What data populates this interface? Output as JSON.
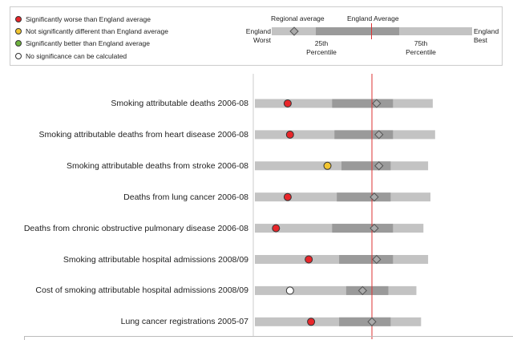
{
  "legend": {
    "items": [
      {
        "label": "Significantly worse than England average",
        "color": "#e8262a"
      },
      {
        "label": "Not significantly different than England average",
        "color": "#f2c531"
      },
      {
        "label": "Significantly better than England average",
        "color": "#6fb33f"
      },
      {
        "label": "No significance can be calculated",
        "color": "#ffffff"
      }
    ],
    "key": {
      "regional": "Regional average",
      "england_avg": "England Average",
      "worst": "England Worst",
      "best": "England Best",
      "p25": "25th Percentile",
      "p75": "75th Percentile"
    }
  },
  "chart_data": {
    "type": "spine",
    "scale_note": "",
    "series_fields": [
      "worst",
      "p25",
      "p75",
      "best",
      "local",
      "regional"
    ],
    "england_average": 50,
    "rows": [
      {
        "label": "Smoking attributable deaths 2006-08",
        "worst": 0,
        "p25": 33,
        "p75": 59,
        "best": 76,
        "local": 14,
        "regional": 52,
        "significance": "worse"
      },
      {
        "label": "Smoking attributable deaths from heart disease 2006-08",
        "worst": 0,
        "p25": 34,
        "p75": 59,
        "best": 77,
        "local": 15,
        "regional": 53,
        "significance": "worse"
      },
      {
        "label": "Smoking attributable deaths from stroke 2006-08",
        "worst": 0,
        "p25": 37,
        "p75": 58,
        "best": 74,
        "local": 31,
        "regional": 53,
        "significance": "not-different"
      },
      {
        "label": "Deaths from lung cancer 2006-08",
        "worst": 0,
        "p25": 35,
        "p75": 58,
        "best": 75,
        "local": 14,
        "regional": 51,
        "significance": "worse"
      },
      {
        "label": "Deaths from chronic obstructive pulmonary disease 2006-08",
        "worst": 0,
        "p25": 33,
        "p75": 59,
        "best": 72,
        "local": 9,
        "regional": 51,
        "significance": "worse"
      },
      {
        "label": "Smoking attributable hospital admissions 2008/09",
        "worst": 0,
        "p25": 36,
        "p75": 59,
        "best": 74,
        "local": 23,
        "regional": 52,
        "significance": "worse"
      },
      {
        "label": "Cost of smoking attributable hospital admissions 2008/09",
        "worst": 0,
        "p25": 39,
        "p75": 57,
        "best": 69,
        "local": 15,
        "regional": 46,
        "significance": "none"
      },
      {
        "label": "Lung cancer registrations 2005-07",
        "worst": 0,
        "p25": 36,
        "p75": 58,
        "best": 71,
        "local": 24,
        "regional": 50,
        "significance": "worse"
      }
    ]
  },
  "colors": {
    "light": "#c3c3c3",
    "dark": "#9a9a9a",
    "england_line": "#d33",
    "worse": "#e8262a",
    "not-different": "#f2c531",
    "better": "#6fb33f",
    "none": "#ffffff"
  }
}
